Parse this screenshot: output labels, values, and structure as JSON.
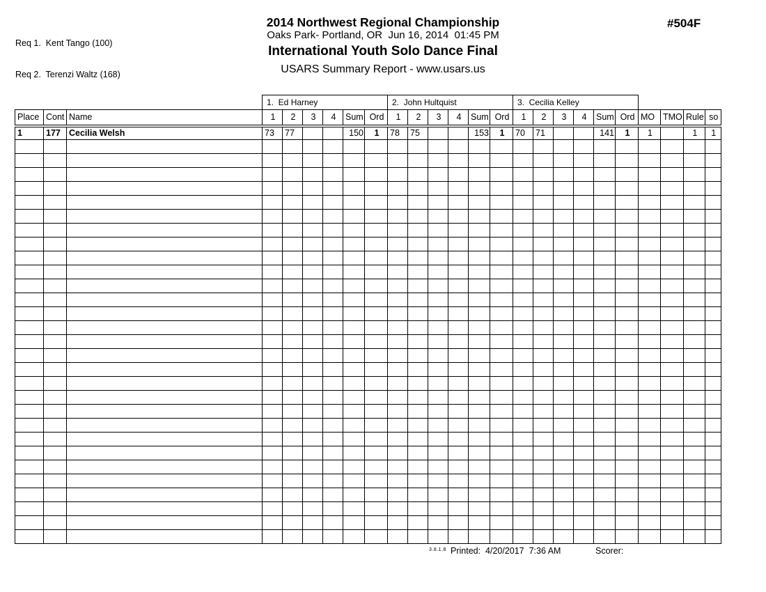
{
  "header": {
    "req1": "Req 1.  Kent Tango (100)",
    "req2": "Req 2.  Terenzi Waltz (168)",
    "title": "2014 Northwest Regional Championship",
    "venue": "Oaks Park- Portland, OR  Jun 16, 2014  01:45 PM",
    "event": "International Youth Solo Dance Final",
    "report": "USARS Summary Report - www.usars.us",
    "event_number": "#504F"
  },
  "table": {
    "judges": [
      "1.  Ed Harney",
      "2.  John Hultquist",
      "3.  Cecilia Kelley"
    ],
    "headers": {
      "place": "Place",
      "cont": "Cont",
      "name": "Name",
      "trials": [
        "1",
        "2",
        "3",
        "4"
      ],
      "sum": "Sum",
      "ord": "Ord",
      "mo": "MO",
      "tmo": "TMO",
      "rule": "Rule",
      "so": "so"
    },
    "rows": [
      {
        "place": "1",
        "cont": "177",
        "name": "Cecilia Welsh",
        "judges": [
          {
            "scores": [
              "73",
              "77",
              "",
              ""
            ],
            "sum": "150",
            "ord": "1"
          },
          {
            "scores": [
              "78",
              "75",
              "",
              ""
            ],
            "sum": "153",
            "ord": "1"
          },
          {
            "scores": [
              "70",
              "71",
              "",
              ""
            ],
            "sum": "141",
            "ord": "1"
          }
        ],
        "mo": "1",
        "tmo": "",
        "rule": "1",
        "so": "1"
      }
    ],
    "empty_row_count": 29
  },
  "footer": {
    "version": "3.8.1.8",
    "printed": "Printed:  4/20/2017  7:36 AM",
    "scorer": "Scorer:"
  },
  "colors": {
    "text": "#000000",
    "border": "#000000",
    "background": "#ffffff"
  }
}
